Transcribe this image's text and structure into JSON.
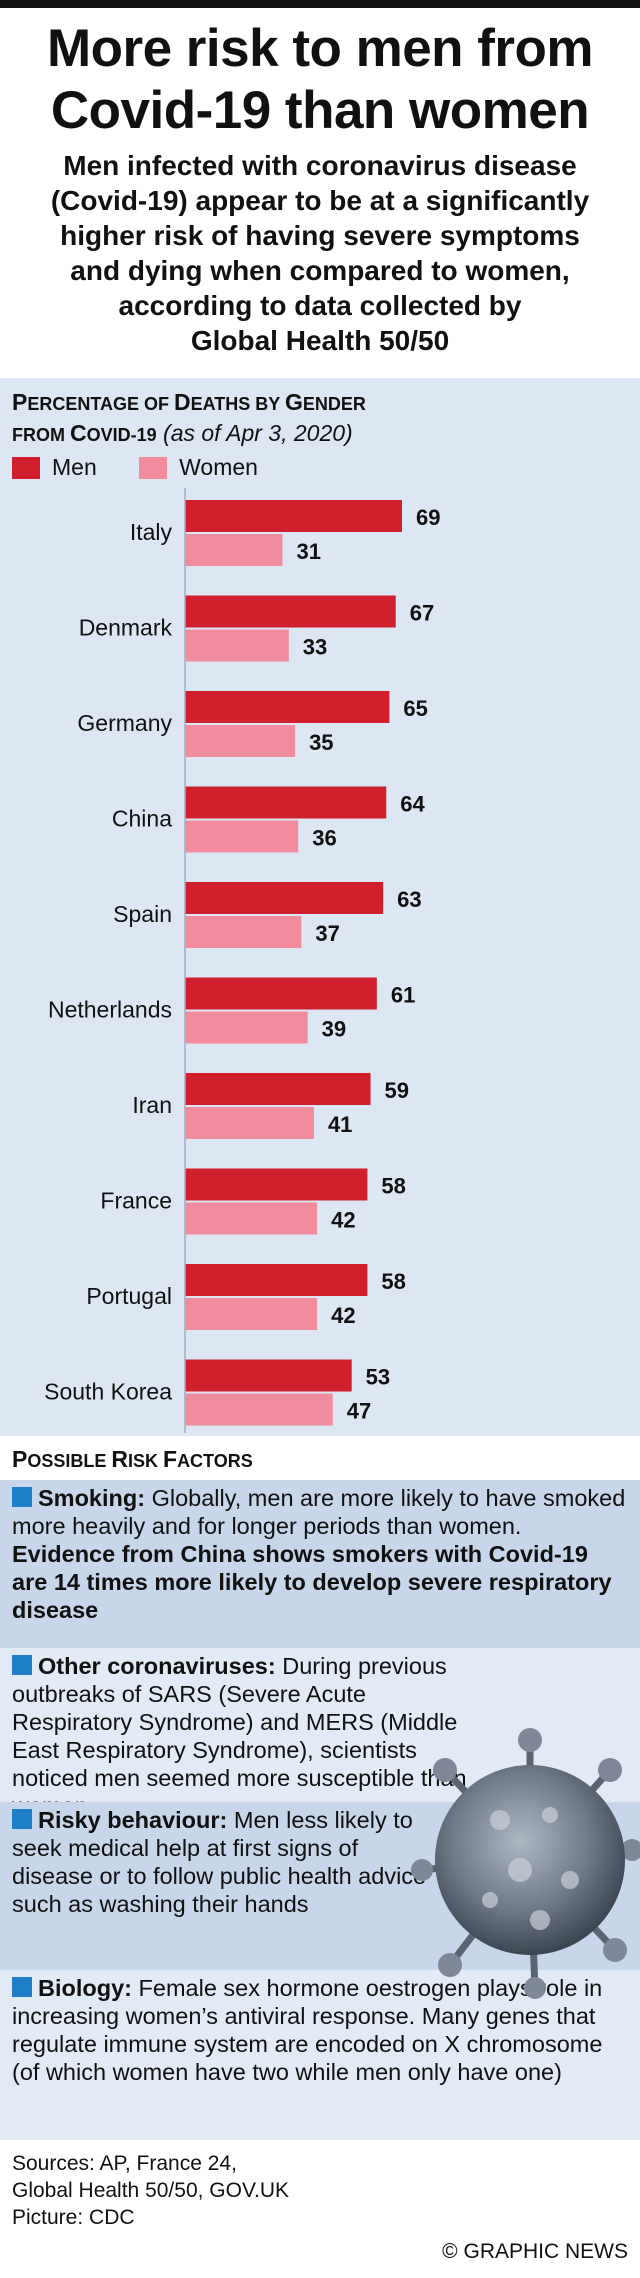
{
  "header": {
    "title_line1": "More risk to men from",
    "title_line2": "Covid-19 than women",
    "subtitle_lines": [
      "Men infected with coronavirus disease",
      "(Covid-19) appear to be at a significantly",
      "higher risk of having severe symptoms",
      "and dying when compared to women,",
      "according to data collected by",
      "Global Health 50/50"
    ]
  },
  "chart_heading": {
    "line1_a": "P",
    "line1_b": "ERCENTAGE OF ",
    "line1_c": "D",
    "line1_d": "EATHS BY ",
    "line1_e": "G",
    "line1_f": "ENDER",
    "line2_a": "FROM ",
    "line2_b": "C",
    "line2_c": "OVID-19",
    "note": "(as of Apr 3, 2020)"
  },
  "colors": {
    "men": "#d0202e",
    "women": "#f08c9e",
    "panel": "#dde6f3",
    "bullet": "#1e7fc6"
  },
  "chart_data": {
    "type": "bar",
    "orientation": "horizontal",
    "categories": [
      "Italy",
      "Denmark",
      "Germany",
      "China",
      "Spain",
      "Netherlands",
      "Iran",
      "France",
      "Portugal",
      "South Korea"
    ],
    "series": [
      {
        "name": "Men",
        "values": [
          69,
          67,
          65,
          64,
          63,
          61,
          59,
          58,
          58,
          53
        ]
      },
      {
        "name": "Women",
        "values": [
          31,
          33,
          35,
          36,
          37,
          39,
          41,
          42,
          42,
          47
        ]
      }
    ],
    "xlim": [
      0,
      69
    ],
    "data_labels": true,
    "legend_placement": "top-left"
  },
  "risk_factors": {
    "heading_a": "P",
    "heading_b": "OSSIBLE ",
    "heading_c": "R",
    "heading_d": "ISK ",
    "heading_e": "F",
    "heading_f": "ACTORS",
    "smoking": {
      "label": "Smoking:",
      "text": " Globally, men are more likely to have smoked more heavily and for longer periods than women. ",
      "emphasis": "Evidence from China shows smokers with Covid-19 are 14 times more likely to develop severe respiratory disease"
    },
    "other": {
      "label": "Other coronaviruses:",
      "text": " During previous outbreaks of SARS (Severe Acute Respiratory Syndrome) and MERS (Middle East Respiratory Syndrome), scientists noticed men seemed more susceptible than women"
    },
    "behaviour": {
      "label": "Risky behaviour:",
      "text": " Men less likely to seek medical help at first signs of disease or to follow public health advice such as washing their hands"
    },
    "biology": {
      "label": "Biology:",
      "text": " Female sex hormone oestrogen plays role in increasing women’s antiviral response. Many genes that regulate immune system are encoded on X chromosome (of which women have two while men only have one)"
    }
  },
  "footer": {
    "sources_line1": "Sources: AP, France 24,",
    "sources_line2": "Global Health 50/50, GOV.UK",
    "picture": "Picture: CDC",
    "credit": "© GRAPHIC NEWS"
  }
}
